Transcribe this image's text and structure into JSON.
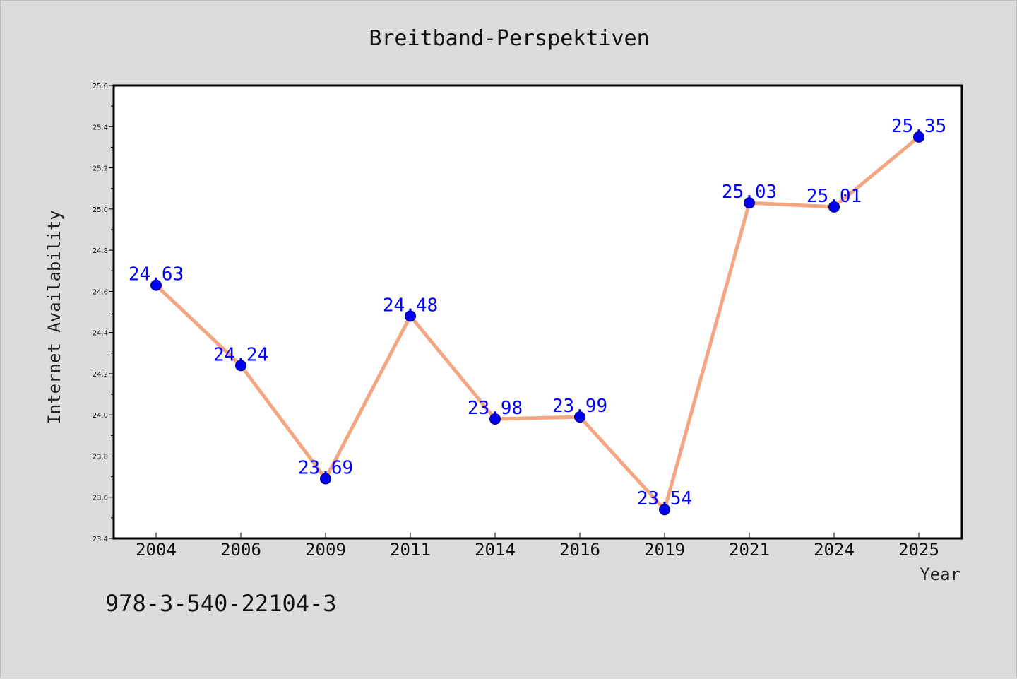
{
  "chart_data": {
    "type": "line",
    "title": "Breitband-Perspektiven",
    "xlabel": "Year",
    "ylabel": "Internet Availability",
    "categories": [
      "2004",
      "2006",
      "2009",
      "2011",
      "2014",
      "2016",
      "2019",
      "2021",
      "2024",
      "2025"
    ],
    "series": [
      {
        "values": [
          24.63,
          24.24,
          23.69,
          24.48,
          23.98,
          23.99,
          23.54,
          25.03,
          25.01,
          25.35
        ],
        "line_color": "#f4a582",
        "marker_color": "#0000ee"
      }
    ],
    "ylim": [
      23.4,
      25.6
    ],
    "yticks": [
      "23.4",
      "23.6",
      "23.8",
      "24.0",
      "24.2",
      "24.4",
      "24.6",
      "24.8",
      "25.0",
      "25.2",
      "25.4",
      "25.6"
    ],
    "grid": false,
    "legend": "none"
  },
  "footer": {
    "text": "978-3-540-22104-3"
  },
  "colors": {
    "background": "#dcdcdc",
    "plot_background": "#ffffff",
    "data_label": "#0000ff"
  }
}
